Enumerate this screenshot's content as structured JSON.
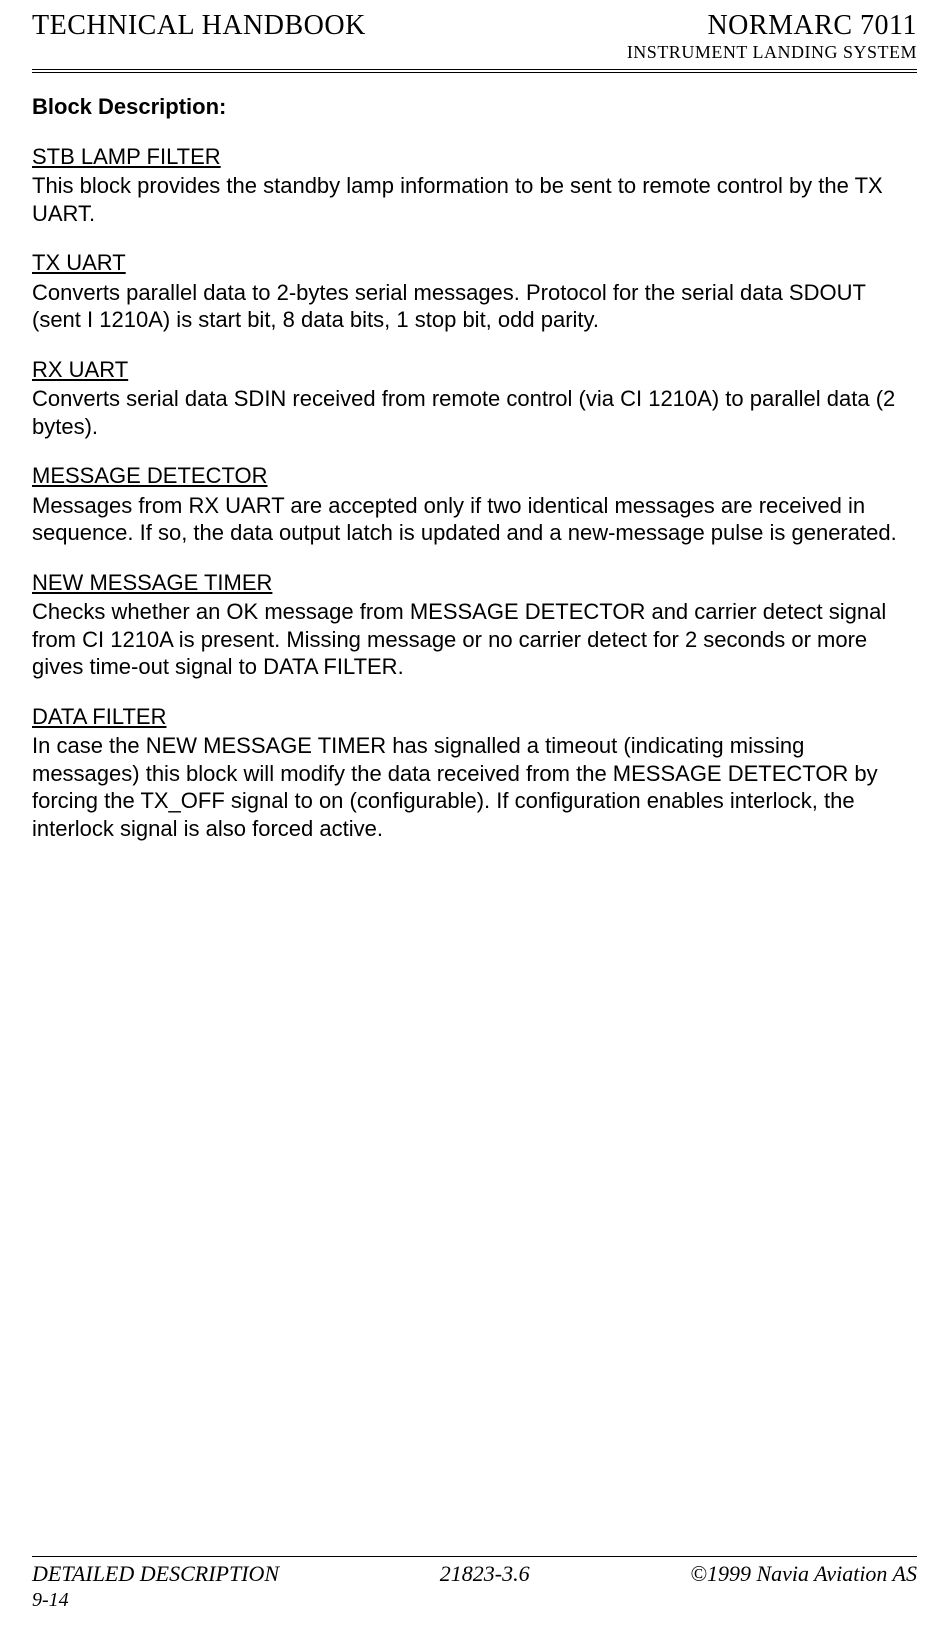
{
  "header": {
    "left": "TECHNICAL HANDBOOK",
    "model": "NORMARC 7011",
    "sub": "INSTRUMENT LANDING SYSTEM"
  },
  "content": {
    "title": "Block Description:",
    "sections": [
      {
        "heading": "STB LAMP FILTER",
        "body": "This block provides the standby lamp information to be sent to remote control by the TX UART."
      },
      {
        "heading": "TX UART",
        "body": "Converts parallel data to 2-bytes serial messages. Protocol for the serial data SDOUT (sent I 1210A) is start bit, 8 data bits, 1 stop bit, odd parity."
      },
      {
        "heading": "RX UART",
        "body": "Converts serial data SDIN received from remote control (via CI 1210A) to parallel data (2 bytes)."
      },
      {
        "heading": "MESSAGE DETECTOR",
        "body": "Messages from RX UART are accepted only if two identical messages are received in sequence. If so, the data output latch is updated and a new-message pulse is generated."
      },
      {
        "heading": "NEW MESSAGE TIMER",
        "body": "Checks whether an OK message from MESSAGE DETECTOR and carrier detect signal from CI 1210A is present. Missing message or no carrier detect for 2 seconds or more gives time-out signal to DATA FILTER."
      },
      {
        "heading": "DATA FILTER",
        "body": "In case the NEW MESSAGE TIMER has signalled a timeout (indicating missing messages) this block will modify the data received from the MESSAGE DETECTOR by forcing the TX_OFF signal to on (configurable). If configuration enables interlock, the interlock signal is also forced active."
      }
    ]
  },
  "footer": {
    "left": "DETAILED DESCRIPTION",
    "center": "21823-3.6",
    "right": "©1999 Navia Aviation AS",
    "page": "9-14"
  }
}
